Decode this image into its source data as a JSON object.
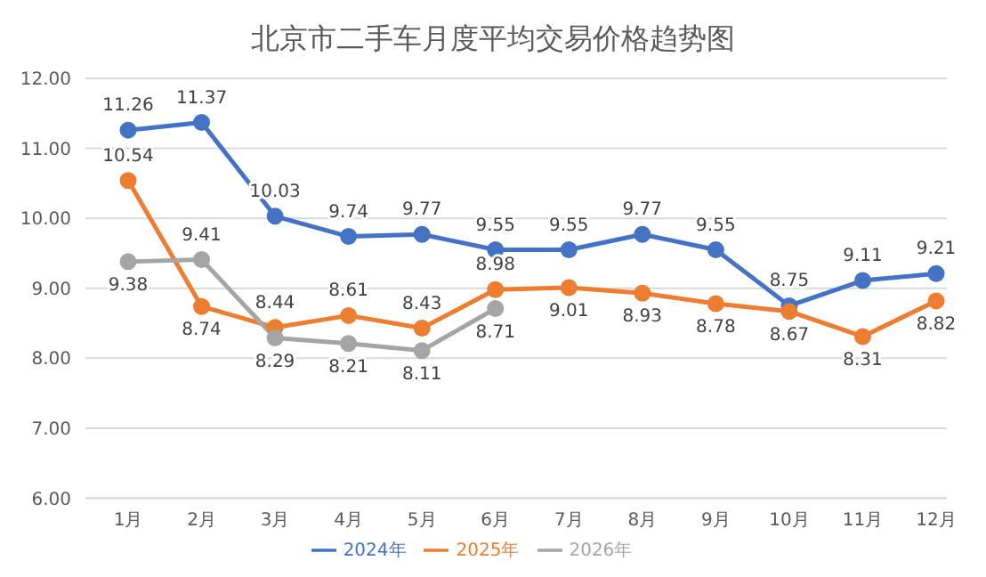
{
  "chart_data": {
    "type": "line",
    "title": "北京市二手车月度平均交易价格趋势图",
    "categories": [
      "1月",
      "2月",
      "3月",
      "4月",
      "5月",
      "6月",
      "7月",
      "8月",
      "9月",
      "10月",
      "11月",
      "12月"
    ],
    "series": [
      {
        "name": "2024年",
        "color": "#4472c4",
        "values": [
          11.26,
          11.37,
          10.03,
          9.74,
          9.77,
          9.55,
          9.55,
          9.77,
          9.55,
          8.75,
          9.11,
          9.21
        ]
      },
      {
        "name": "2025年",
        "color": "#ed7d31",
        "values": [
          10.54,
          8.74,
          8.44,
          8.61,
          8.43,
          8.98,
          9.01,
          8.93,
          8.78,
          8.67,
          8.31,
          8.82
        ]
      },
      {
        "name": "2026年",
        "color": "#a5a5a5",
        "values": [
          9.38,
          9.41,
          8.29,
          8.21,
          8.11,
          8.71,
          null,
          null,
          null,
          null,
          null,
          null
        ]
      }
    ],
    "ylim": [
      6,
      12
    ],
    "yticks": [
      {
        "value": 6,
        "label": "6.00"
      },
      {
        "value": 7,
        "label": "7.00"
      },
      {
        "value": 8,
        "label": "8.00"
      },
      {
        "value": 9,
        "label": "9.00"
      },
      {
        "value": 10,
        "label": "10.00"
      },
      {
        "value": 11,
        "label": "11.00"
      },
      {
        "value": 12,
        "label": "12.00"
      }
    ],
    "grid": "y",
    "legend": "bottom",
    "marker": "circle",
    "line_style": "solid",
    "data_labels": true
  }
}
